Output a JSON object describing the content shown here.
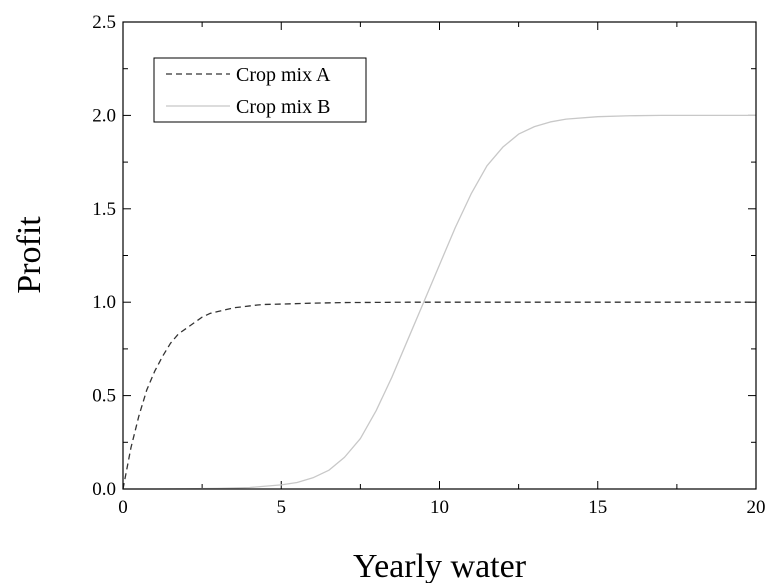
{
  "chart_data": {
    "type": "line",
    "title": "",
    "xlabel": "Yearly water",
    "ylabel": "Profit",
    "xlim": [
      0,
      20
    ],
    "ylim": [
      0,
      2.5
    ],
    "xticks": [
      0,
      5,
      10,
      15,
      20
    ],
    "xtick_labels": [
      "0",
      "5",
      "10",
      "15",
      "20"
    ],
    "yticks": [
      0,
      0.5,
      1.0,
      1.5,
      2.0,
      2.5
    ],
    "ytick_labels": [
      "0.0",
      "0.5",
      "1.0",
      "1.5",
      "2.0",
      "2.5"
    ],
    "grid": false,
    "legend_position": "top-left",
    "series": [
      {
        "name": "Crop mix A",
        "style": "dashed",
        "color": "#333333",
        "x": [
          0,
          0.25,
          0.5,
          0.75,
          1,
          1.25,
          1.5,
          1.75,
          2,
          2.25,
          2.5,
          2.75,
          3,
          3.25,
          3.5,
          3.75,
          4,
          4.25,
          4.5,
          5,
          6,
          7,
          8,
          9,
          10,
          12,
          14,
          16,
          18,
          20
        ],
        "y": [
          0,
          0.22,
          0.39,
          0.53,
          0.63,
          0.71,
          0.78,
          0.83,
          0.86,
          0.89,
          0.92,
          0.94,
          0.95,
          0.96,
          0.97,
          0.975,
          0.98,
          0.985,
          0.988,
          0.99,
          0.995,
          0.998,
          0.999,
          1.0,
          1.0,
          1.0,
          1.0,
          1.0,
          1.0,
          1.0
        ]
      },
      {
        "name": "Crop mix B",
        "style": "solid",
        "color": "#c8c8c8",
        "x": [
          0,
          1,
          2,
          3,
          4,
          5,
          5.5,
          6,
          6.5,
          7,
          7.5,
          8,
          8.5,
          9,
          9.5,
          10,
          10.5,
          11,
          11.5,
          12,
          12.5,
          13,
          13.5,
          14,
          15,
          16,
          17,
          18,
          20
        ],
        "y": [
          0,
          0,
          0.001,
          0.003,
          0.008,
          0.022,
          0.035,
          0.06,
          0.1,
          0.17,
          0.27,
          0.42,
          0.6,
          0.8,
          1.0,
          1.2,
          1.4,
          1.58,
          1.73,
          1.83,
          1.9,
          1.94,
          1.965,
          1.98,
          1.993,
          1.998,
          2.0,
          2.0,
          2.0
        ]
      }
    ]
  }
}
